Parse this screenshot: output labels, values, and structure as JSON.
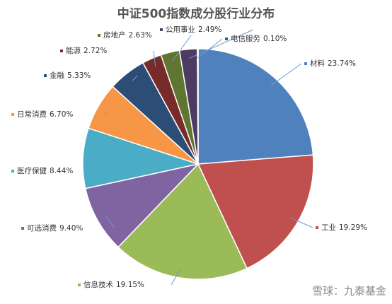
{
  "chart_data": {
    "type": "pie",
    "title": "中证500指数成分股行业分布",
    "categories": [
      "材料",
      "工业",
      "信息技术",
      "可选消费",
      "医疗保健",
      "日常消费",
      "金融",
      "能源",
      "房地产",
      "公用事业",
      "电信服务"
    ],
    "values": [
      23.74,
      19.29,
      19.15,
      9.4,
      8.44,
      6.7,
      5.33,
      2.72,
      2.63,
      2.49,
      0.1
    ],
    "value_labels": [
      "23.74%",
      "19.29%",
      "19.15%",
      "9.40%",
      "8.44%",
      "6.70%",
      "5.33%",
      "2.72%",
      "2.63%",
      "2.49%",
      "0.10%"
    ],
    "colors": [
      "#4f81bd",
      "#c0504d",
      "#9bbb59",
      "#8064a2",
      "#4bacc6",
      "#f79646",
      "#2c4d75",
      "#772c2a",
      "#5f7530",
      "#4d3b62",
      "#276a7c"
    ]
  },
  "watermark": "雪球：九泰基金"
}
